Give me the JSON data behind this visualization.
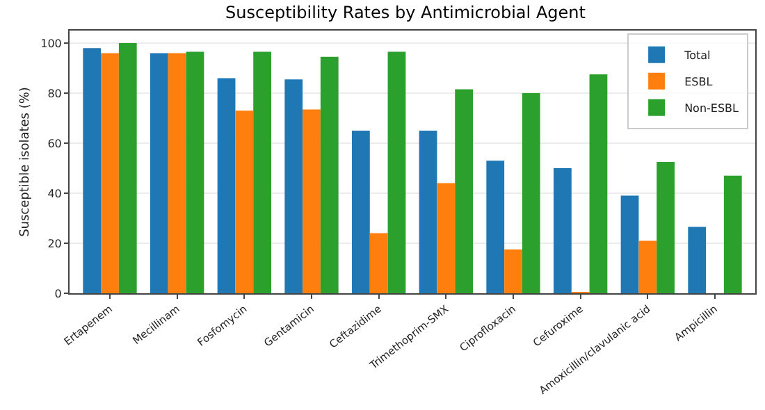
{
  "chart_data": {
    "type": "bar",
    "title": "Susceptibility Rates by Antimicrobial Agent",
    "ylabel": "Susceptible isolates (%)",
    "categories": [
      "Ertapenem",
      "Mecillinam",
      "Fosfomycin",
      "Gentamicin",
      "Ceftazidime",
      "Trimethoprim-SMX",
      "Ciprofloxacin",
      "Cefuroxime",
      "Amoxicillin/clavulanic acid",
      "Ampicillin"
    ],
    "series": [
      {
        "name": "Total",
        "color": "#1f77b4",
        "values": [
          98,
          96,
          86,
          85.5,
          65,
          65,
          53,
          50,
          39,
          26.5
        ]
      },
      {
        "name": "ESBL",
        "color": "#ff7f0e",
        "values": [
          96,
          96,
          73,
          73.5,
          24,
          44,
          17.5,
          0.5,
          21,
          0
        ]
      },
      {
        "name": "Non-ESBL",
        "color": "#2ca02c",
        "values": [
          100,
          96.5,
          96.5,
          94.5,
          96.5,
          81.5,
          80,
          87.5,
          52.5,
          47
        ]
      }
    ],
    "ylim": [
      0,
      105
    ],
    "yticks": [
      0,
      20,
      40,
      60,
      80,
      100
    ],
    "grid": "y",
    "legend": "top right"
  }
}
